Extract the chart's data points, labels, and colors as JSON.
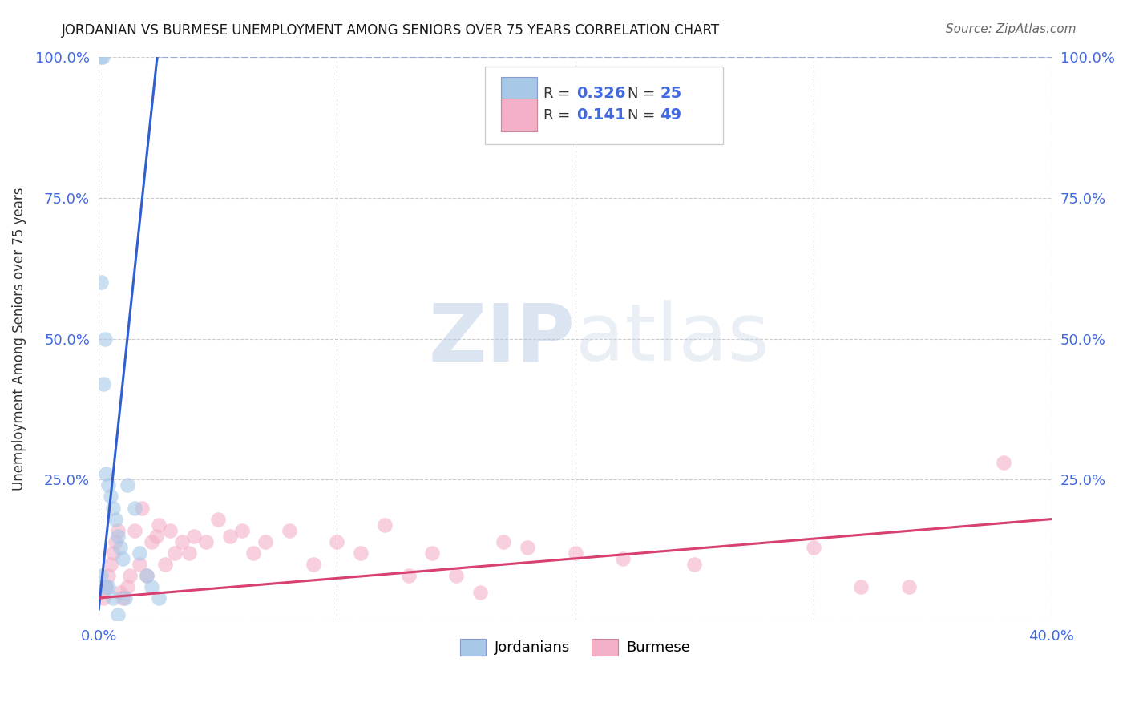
{
  "title": "JORDANIAN VS BURMESE UNEMPLOYMENT AMONG SENIORS OVER 75 YEARS CORRELATION CHART",
  "source": "Source: ZipAtlas.com",
  "ylabel": "Unemployment Among Seniors over 75 years",
  "xlim": [
    0.0,
    0.4
  ],
  "ylim": [
    0.0,
    1.0
  ],
  "xticks": [
    0.0,
    0.1,
    0.2,
    0.3,
    0.4
  ],
  "yticks": [
    0.0,
    0.25,
    0.5,
    0.75,
    1.0
  ],
  "xtick_labels_show": [
    "0.0%",
    "",
    "",
    "",
    "40.0%"
  ],
  "ytick_labels_show": [
    "",
    "25.0%",
    "50.0%",
    "75.0%",
    "100.0%"
  ],
  "right_ytick_labels_show": [
    "",
    "25.0%",
    "50.0%",
    "75.0%",
    "100.0%"
  ],
  "jordanian_color": "#a8c8e8",
  "burmese_color": "#f4b0c8",
  "jordan_line_color": "#3060d0",
  "burmese_line_color": "#d84070",
  "jordan_dash_color": "#9aaad4",
  "R_jordan": "0.326",
  "N_jordan": "25",
  "R_burmese": "0.141",
  "N_burmese": "49",
  "watermark_text": "ZIPatlas",
  "jordanian_x": [
    0.001,
    0.0015,
    0.001,
    0.0025,
    0.003,
    0.004,
    0.005,
    0.006,
    0.007,
    0.008,
    0.009,
    0.01,
    0.012,
    0.015,
    0.017,
    0.02,
    0.022,
    0.025,
    0.002,
    0.001,
    0.004,
    0.006,
    0.003,
    0.008,
    0.011
  ],
  "jordanian_y": [
    1.0,
    1.0,
    0.6,
    0.5,
    0.26,
    0.24,
    0.22,
    0.2,
    0.18,
    0.15,
    0.13,
    0.11,
    0.24,
    0.2,
    0.12,
    0.08,
    0.06,
    0.04,
    0.42,
    0.08,
    0.06,
    0.04,
    0.06,
    0.01,
    0.04
  ],
  "burmese_x": [
    0.001,
    0.002,
    0.003,
    0.004,
    0.005,
    0.006,
    0.007,
    0.008,
    0.009,
    0.01,
    0.012,
    0.013,
    0.015,
    0.017,
    0.018,
    0.02,
    0.022,
    0.024,
    0.025,
    0.028,
    0.03,
    0.032,
    0.035,
    0.038,
    0.04,
    0.045,
    0.05,
    0.055,
    0.06,
    0.065,
    0.07,
    0.08,
    0.09,
    0.1,
    0.11,
    0.12,
    0.13,
    0.14,
    0.15,
    0.16,
    0.17,
    0.18,
    0.2,
    0.22,
    0.25,
    0.3,
    0.32,
    0.34,
    0.38
  ],
  "burmese_y": [
    0.05,
    0.04,
    0.06,
    0.08,
    0.1,
    0.12,
    0.14,
    0.16,
    0.05,
    0.04,
    0.06,
    0.08,
    0.16,
    0.1,
    0.2,
    0.08,
    0.14,
    0.15,
    0.17,
    0.1,
    0.16,
    0.12,
    0.14,
    0.12,
    0.15,
    0.14,
    0.18,
    0.15,
    0.16,
    0.12,
    0.14,
    0.16,
    0.1,
    0.14,
    0.12,
    0.17,
    0.08,
    0.12,
    0.08,
    0.05,
    0.14,
    0.13,
    0.12,
    0.11,
    0.1,
    0.13,
    0.06,
    0.06,
    0.28
  ],
  "grid_color": "#cccccc",
  "tick_color": "#4169e1",
  "background_color": "#ffffff",
  "marker_size": 180,
  "marker_alpha": 0.6,
  "jordan_line_slope": 40.0,
  "jordan_line_intercept": 0.02,
  "burmese_line_slope": 0.35,
  "burmese_line_intercept": 0.04
}
